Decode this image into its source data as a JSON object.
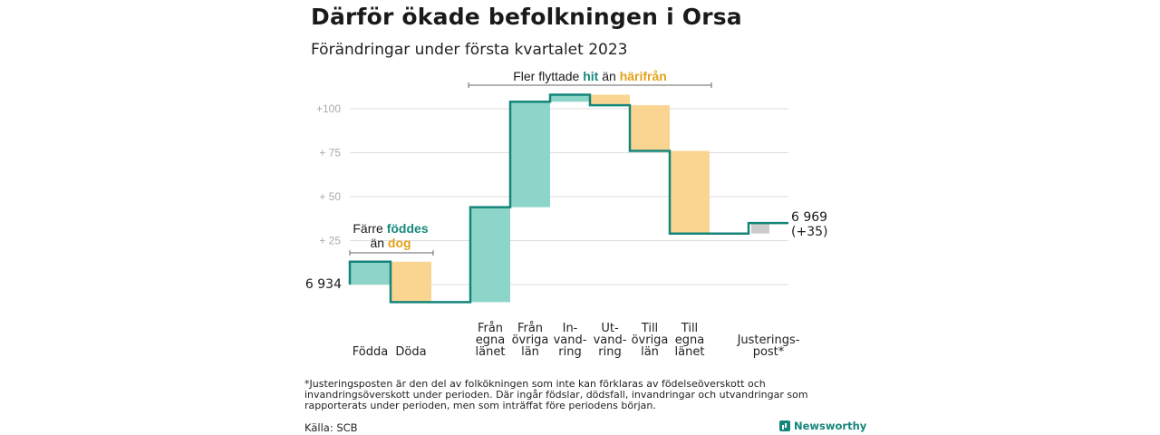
{
  "header": {
    "title": "Därför ökade befolkningen i Orsa",
    "subtitle": "Förändringar under första kvartalet 2023"
  },
  "colors": {
    "increase": "#8dd5c9",
    "decrease": "#f9d591",
    "adjustment": "#cccccc",
    "line": "#15857a",
    "accent_teal": "#16897c",
    "accent_orange": "#e3a21a",
    "grid": "#dddddd",
    "tick": "#aaaaaa"
  },
  "annotations": {
    "group1": {
      "line1": "Färre ",
      "line1_hl": "föddes",
      "line2": "än ",
      "line2_hl": "dog"
    },
    "group2": {
      "pre": "Fler flyttade ",
      "hl1": "hit",
      "mid": " än ",
      "hl2": "härifrån"
    }
  },
  "chart_data": {
    "type": "waterfall",
    "base_label": "6 934",
    "base_value": 6934,
    "end_label": "6 969",
    "end_change_label": "(+35)",
    "yticks": [
      {
        "value": 25,
        "label": "+ 25"
      },
      {
        "value": 50,
        "label": "+ 50"
      },
      {
        "value": 75,
        "label": "+ 75"
      },
      {
        "value": 100,
        "label": "+100"
      }
    ],
    "ylim": [
      -10,
      108
    ],
    "steps": [
      {
        "label": [
          "Födda"
        ],
        "value": 13,
        "kind": "increase"
      },
      {
        "label": [
          "Döda"
        ],
        "value": -23,
        "kind": "decrease"
      },
      {
        "label": [
          "Från",
          "egna",
          "länet"
        ],
        "value": 54,
        "kind": "increase"
      },
      {
        "label": [
          "Från",
          "övriga",
          "län"
        ],
        "value": 60,
        "kind": "increase"
      },
      {
        "label": [
          "In-",
          "vand-",
          "ring"
        ],
        "value": 4,
        "kind": "increase"
      },
      {
        "label": [
          "Ut-",
          "vand-",
          "ring"
        ],
        "value": -6,
        "kind": "decrease"
      },
      {
        "label": [
          "Till",
          "övriga",
          "län"
        ],
        "value": -26,
        "kind": "decrease"
      },
      {
        "label": [
          "Till",
          "egna",
          "länet"
        ],
        "value": -47,
        "kind": "decrease"
      },
      {
        "label": [
          "Justerings-",
          "post*"
        ],
        "value": 6,
        "kind": "adjustment"
      }
    ]
  },
  "footer": {
    "footnote": "*Justeringsposten är den del av folkökningen som inte kan förklaras av födelseöverskott och invandringsöverskott under perioden. Där ingår födslar, dödsfall, invandringar och utvandringar som rapporterats under perioden, men som inträffat före periodens början.",
    "source": "Källa: SCB",
    "brand": "Newsworthy"
  }
}
